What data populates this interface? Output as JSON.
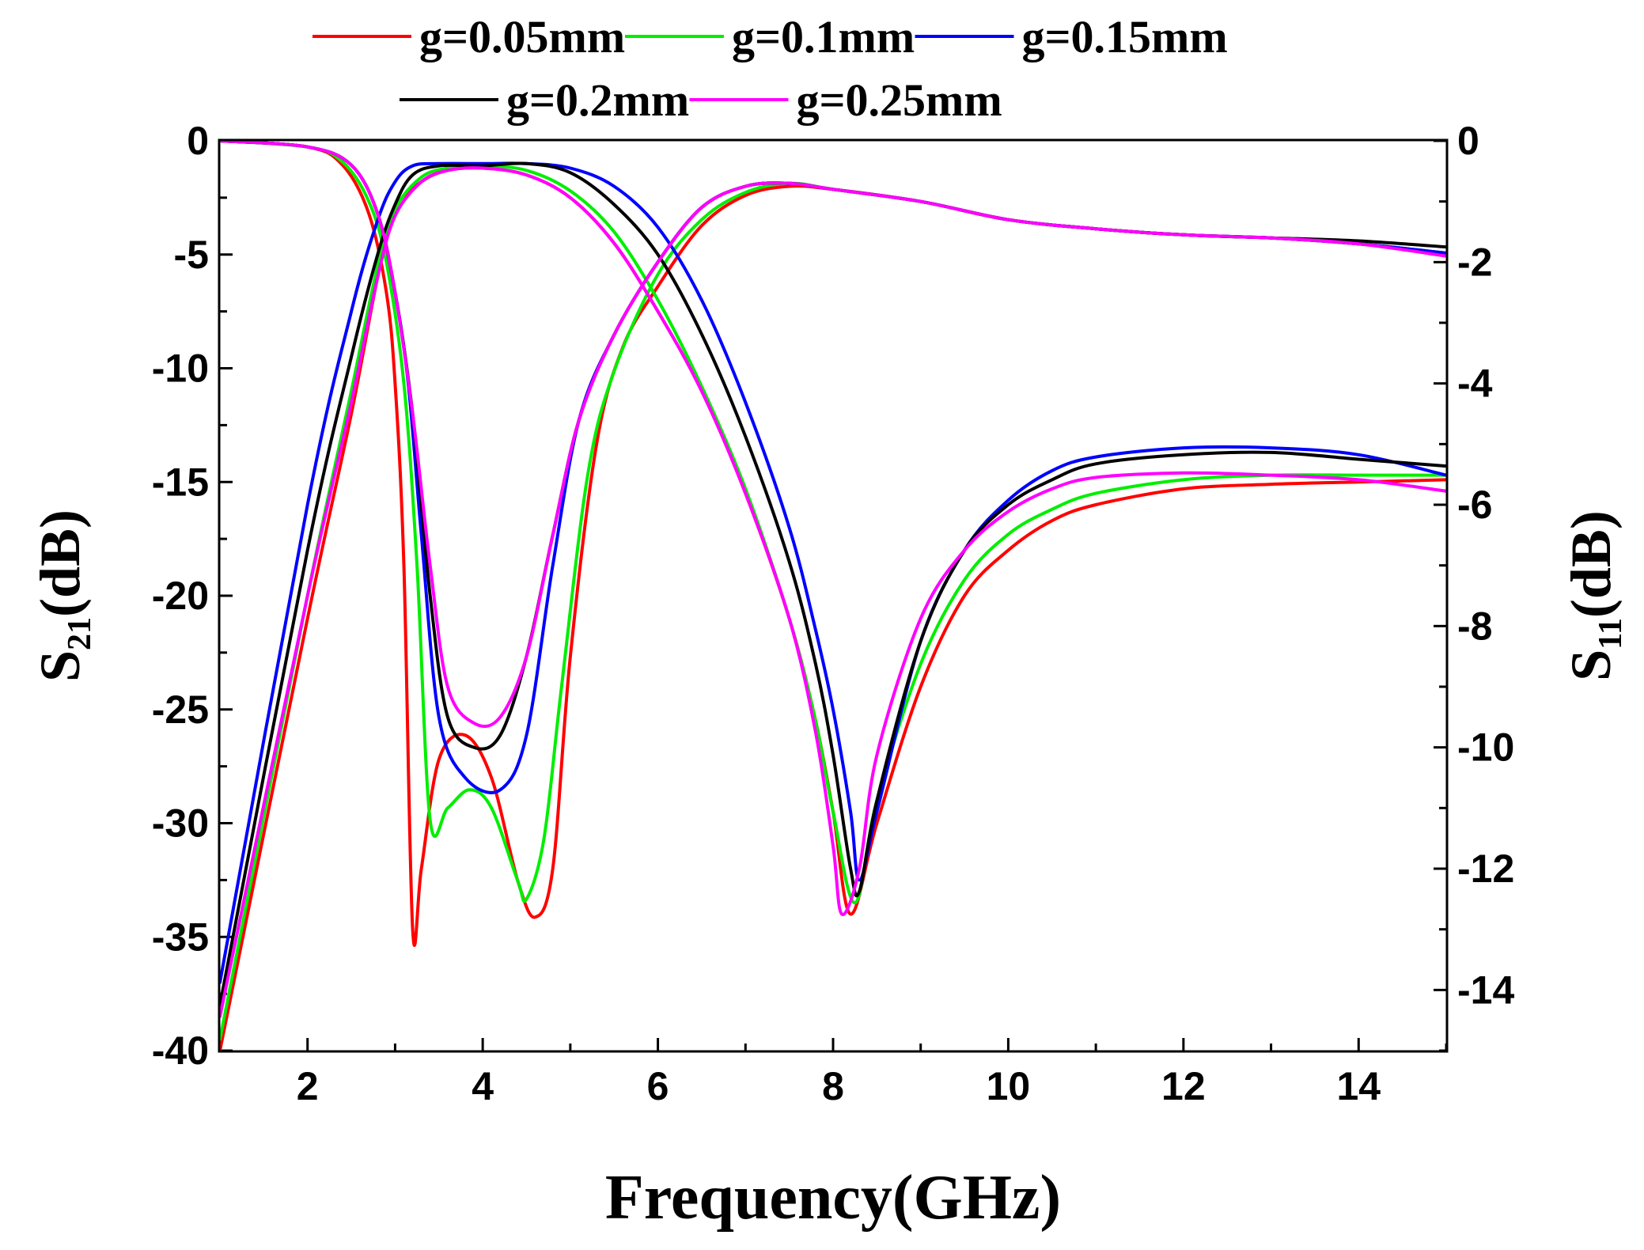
{
  "chart_data": {
    "type": "line",
    "title": "",
    "xlabel": "Frequency(GHz)",
    "ylabel_left": {
      "main": "S",
      "sub": "21",
      "unit": "(dB)"
    },
    "ylabel_right": {
      "main": "S",
      "sub": "11",
      "unit": "(dB)"
    },
    "xlim": [
      1,
      15
    ],
    "ylim_left": [
      -40,
      0
    ],
    "ylim_right": [
      -15,
      0
    ],
    "x_ticks": [
      2,
      4,
      6,
      8,
      10,
      12,
      14
    ],
    "x_tick_labels": [
      "2",
      "4",
      "6",
      "8",
      "10",
      "12",
      "14"
    ],
    "y_left_ticks": [
      0,
      -5,
      -10,
      -15,
      -20,
      -25,
      -30,
      -35,
      -40
    ],
    "y_left_tick_labels": [
      "0",
      "-5",
      "-10",
      "-15",
      "-20",
      "-25",
      "-30",
      "-35",
      "-40"
    ],
    "y_right_ticks": [
      0,
      -2,
      -4,
      -6,
      -8,
      -10,
      -12,
      -14
    ],
    "y_right_tick_labels": [
      "0",
      "-2",
      "-4",
      "-6",
      "-8",
      "-10",
      "-12",
      "-14"
    ],
    "grid": false,
    "legend_position": "top",
    "series": [
      {
        "name": "g=0.05mm",
        "color": "#ff0000",
        "s21": [
          [
            1,
            -40
          ],
          [
            2,
            -21
          ],
          [
            2.5,
            -12
          ],
          [
            2.8,
            -6
          ],
          [
            3,
            -3
          ],
          [
            3.3,
            -1.8
          ],
          [
            3.6,
            -1.3
          ],
          [
            4,
            -1.2
          ],
          [
            4.5,
            -1.5
          ],
          [
            5,
            -2.5
          ],
          [
            5.5,
            -4.5
          ],
          [
            6,
            -7.5
          ],
          [
            6.5,
            -11
          ],
          [
            7,
            -15.5
          ],
          [
            7.5,
            -21
          ],
          [
            7.8,
            -25.5
          ],
          [
            8,
            -29.5
          ],
          [
            8.2,
            -34
          ],
          [
            8.5,
            -30
          ],
          [
            9,
            -24
          ],
          [
            9.5,
            -20
          ],
          [
            10,
            -18
          ],
          [
            10.5,
            -16.7
          ],
          [
            11,
            -16
          ],
          [
            12,
            -15.3
          ],
          [
            13,
            -15.1
          ],
          [
            14,
            -15
          ],
          [
            15,
            -14.9
          ]
        ],
        "s11": [
          [
            1,
            0
          ],
          [
            2,
            -0.1
          ],
          [
            2.4,
            -0.4
          ],
          [
            2.7,
            -1.2
          ],
          [
            2.9,
            -2.5
          ],
          [
            3,
            -4
          ],
          [
            3.1,
            -7
          ],
          [
            3.2,
            -13
          ],
          [
            3.3,
            -12
          ],
          [
            3.5,
            -10.2
          ],
          [
            3.8,
            -9.8
          ],
          [
            4.1,
            -10.5
          ],
          [
            4.4,
            -12.2
          ],
          [
            4.6,
            -12.8
          ],
          [
            4.8,
            -12
          ],
          [
            5,
            -8.5
          ],
          [
            5.3,
            -5
          ],
          [
            5.6,
            -3.4
          ],
          [
            6,
            -2.4
          ],
          [
            6.5,
            -1.4
          ],
          [
            7,
            -0.9
          ],
          [
            7.5,
            -0.75
          ],
          [
            8,
            -0.8
          ],
          [
            9,
            -1.0
          ],
          [
            10,
            -1.3
          ],
          [
            11,
            -1.45
          ],
          [
            12,
            -1.55
          ],
          [
            13,
            -1.6
          ],
          [
            14,
            -1.7
          ],
          [
            15,
            -1.85
          ]
        ]
      },
      {
        "name": "g=0.1mm",
        "color": "#00ee00",
        "s21": [
          [
            1,
            -39.5
          ],
          [
            2,
            -20
          ],
          [
            2.5,
            -11
          ],
          [
            2.8,
            -5.5
          ],
          [
            3,
            -3
          ],
          [
            3.3,
            -1.6
          ],
          [
            3.6,
            -1.2
          ],
          [
            4,
            -1.1
          ],
          [
            4.5,
            -1.3
          ],
          [
            5,
            -2.2
          ],
          [
            5.5,
            -4
          ],
          [
            6,
            -7
          ],
          [
            6.5,
            -10.8
          ],
          [
            7,
            -15.3
          ],
          [
            7.5,
            -21
          ],
          [
            7.8,
            -25.5
          ],
          [
            8,
            -29.5
          ],
          [
            8.25,
            -33.5
          ],
          [
            8.5,
            -29
          ],
          [
            9,
            -23
          ],
          [
            9.5,
            -19.3
          ],
          [
            10,
            -17.3
          ],
          [
            10.5,
            -16.2
          ],
          [
            11,
            -15.5
          ],
          [
            12,
            -14.9
          ],
          [
            13,
            -14.7
          ],
          [
            14,
            -14.7
          ],
          [
            15,
            -14.7
          ]
        ],
        "s11": [
          [
            1,
            0
          ],
          [
            2,
            -0.1
          ],
          [
            2.4,
            -0.35
          ],
          [
            2.7,
            -1
          ],
          [
            2.9,
            -2
          ],
          [
            3.1,
            -4
          ],
          [
            3.25,
            -7
          ],
          [
            3.4,
            -11.2
          ],
          [
            3.6,
            -11
          ],
          [
            3.85,
            -10.7
          ],
          [
            4.1,
            -11
          ],
          [
            4.4,
            -12.2
          ],
          [
            4.5,
            -12.5
          ],
          [
            4.7,
            -11.5
          ],
          [
            4.9,
            -9
          ],
          [
            5.2,
            -5.5
          ],
          [
            5.5,
            -3.8
          ],
          [
            6,
            -2.2
          ],
          [
            6.5,
            -1.3
          ],
          [
            7,
            -0.85
          ],
          [
            7.5,
            -0.7
          ],
          [
            8,
            -0.8
          ],
          [
            9,
            -1.0
          ],
          [
            10,
            -1.3
          ],
          [
            11,
            -1.45
          ],
          [
            12,
            -1.55
          ],
          [
            13,
            -1.6
          ],
          [
            14,
            -1.7
          ],
          [
            15,
            -1.85
          ]
        ]
      },
      {
        "name": "g=0.15mm",
        "color": "#0000ff",
        "s21": [
          [
            1,
            -37
          ],
          [
            2,
            -16
          ],
          [
            2.5,
            -7.5
          ],
          [
            2.8,
            -3.5
          ],
          [
            3,
            -1.8
          ],
          [
            3.2,
            -1.1
          ],
          [
            3.5,
            -1
          ],
          [
            4,
            -1
          ],
          [
            4.5,
            -1
          ],
          [
            5,
            -1.2
          ],
          [
            5.5,
            -2
          ],
          [
            6,
            -3.8
          ],
          [
            6.5,
            -7
          ],
          [
            7,
            -11.5
          ],
          [
            7.5,
            -17
          ],
          [
            7.8,
            -21.5
          ],
          [
            8,
            -25
          ],
          [
            8.2,
            -29.5
          ],
          [
            8.3,
            -32.5
          ],
          [
            8.5,
            -29.5
          ],
          [
            9,
            -22
          ],
          [
            9.5,
            -18
          ],
          [
            10,
            -15.8
          ],
          [
            10.5,
            -14.5
          ],
          [
            11,
            -13.9
          ],
          [
            12,
            -13.5
          ],
          [
            13,
            -13.5
          ],
          [
            14,
            -13.8
          ],
          [
            15,
            -14.7
          ]
        ],
        "s11": [
          [
            1,
            0
          ],
          [
            2,
            -0.1
          ],
          [
            2.5,
            -0.4
          ],
          [
            2.8,
            -1.2
          ],
          [
            3,
            -2.5
          ],
          [
            3.15,
            -4
          ],
          [
            3.3,
            -6.5
          ],
          [
            3.5,
            -9.5
          ],
          [
            3.8,
            -10.5
          ],
          [
            4.2,
            -10.7
          ],
          [
            4.5,
            -9.8
          ],
          [
            4.8,
            -7
          ],
          [
            5.1,
            -4.6
          ],
          [
            5.5,
            -3.2
          ],
          [
            6,
            -2
          ],
          [
            6.5,
            -1.1
          ],
          [
            7,
            -0.75
          ],
          [
            7.5,
            -0.7
          ],
          [
            8,
            -0.8
          ],
          [
            9,
            -1.0
          ],
          [
            10,
            -1.3
          ],
          [
            11,
            -1.45
          ],
          [
            12,
            -1.55
          ],
          [
            13,
            -1.6
          ],
          [
            14,
            -1.7
          ],
          [
            15,
            -1.85
          ]
        ]
      },
      {
        "name": "g=0.2mm",
        "color": "#000000",
        "s21": [
          [
            1,
            -38
          ],
          [
            2,
            -18
          ],
          [
            2.5,
            -9.5
          ],
          [
            2.8,
            -5
          ],
          [
            3,
            -2.8
          ],
          [
            3.2,
            -1.5
          ],
          [
            3.5,
            -1.1
          ],
          [
            4,
            -1.1
          ],
          [
            4.5,
            -1
          ],
          [
            5,
            -1.4
          ],
          [
            5.5,
            -2.8
          ],
          [
            6,
            -5
          ],
          [
            6.5,
            -8.5
          ],
          [
            7,
            -13
          ],
          [
            7.5,
            -18.5
          ],
          [
            7.8,
            -23
          ],
          [
            8,
            -27
          ],
          [
            8.2,
            -32
          ],
          [
            8.3,
            -33
          ],
          [
            8.5,
            -29
          ],
          [
            9,
            -22
          ],
          [
            9.5,
            -18
          ],
          [
            10,
            -16
          ],
          [
            10.5,
            -14.9
          ],
          [
            11,
            -14.2
          ],
          [
            12,
            -13.8
          ],
          [
            13,
            -13.7
          ],
          [
            14,
            -14
          ],
          [
            15,
            -14.3
          ]
        ],
        "s11": [
          [
            1,
            0
          ],
          [
            2,
            -0.1
          ],
          [
            2.5,
            -0.4
          ],
          [
            2.8,
            -1.2
          ],
          [
            3,
            -2.5
          ],
          [
            3.2,
            -4.5
          ],
          [
            3.4,
            -7.5
          ],
          [
            3.6,
            -9.5
          ],
          [
            3.9,
            -10
          ],
          [
            4.2,
            -9.8
          ],
          [
            4.5,
            -8.5
          ],
          [
            4.8,
            -6.5
          ],
          [
            5.1,
            -4.6
          ],
          [
            5.5,
            -3.2
          ],
          [
            6,
            -2
          ],
          [
            6.5,
            -1.1
          ],
          [
            7,
            -0.75
          ],
          [
            7.5,
            -0.7
          ],
          [
            8,
            -0.8
          ],
          [
            9,
            -1.0
          ],
          [
            10,
            -1.3
          ],
          [
            11,
            -1.45
          ],
          [
            12,
            -1.55
          ],
          [
            13,
            -1.6
          ],
          [
            14,
            -1.65
          ],
          [
            15,
            -1.75
          ]
        ]
      },
      {
        "name": "g=0.25mm",
        "color": "#ff00ff",
        "s21": [
          [
            1,
            -38.5
          ],
          [
            2,
            -20
          ],
          [
            2.5,
            -11.5
          ],
          [
            2.8,
            -6
          ],
          [
            3,
            -3.3
          ],
          [
            3.3,
            -1.8
          ],
          [
            3.6,
            -1.3
          ],
          [
            4,
            -1.2
          ],
          [
            4.5,
            -1.5
          ],
          [
            5,
            -2.5
          ],
          [
            5.5,
            -4.5
          ],
          [
            6,
            -7.5
          ],
          [
            6.5,
            -11
          ],
          [
            7,
            -15.5
          ],
          [
            7.5,
            -21
          ],
          [
            7.8,
            -26
          ],
          [
            8,
            -31
          ],
          [
            8.1,
            -34
          ],
          [
            8.3,
            -32
          ],
          [
            8.5,
            -27
          ],
          [
            9,
            -21
          ],
          [
            9.5,
            -18
          ],
          [
            10,
            -16.3
          ],
          [
            10.5,
            -15.3
          ],
          [
            11,
            -14.8
          ],
          [
            12,
            -14.6
          ],
          [
            13,
            -14.7
          ],
          [
            14,
            -14.9
          ],
          [
            15,
            -15.4
          ]
        ],
        "s11": [
          [
            1,
            0
          ],
          [
            2,
            -0.1
          ],
          [
            2.5,
            -0.4
          ],
          [
            2.8,
            -1.2
          ],
          [
            3,
            -2.5
          ],
          [
            3.2,
            -4.5
          ],
          [
            3.4,
            -7
          ],
          [
            3.6,
            -9
          ],
          [
            3.9,
            -9.6
          ],
          [
            4.2,
            -9.5
          ],
          [
            4.5,
            -8.5
          ],
          [
            4.8,
            -6.5
          ],
          [
            5.1,
            -4.6
          ],
          [
            5.5,
            -3.2
          ],
          [
            6,
            -2
          ],
          [
            6.5,
            -1.1
          ],
          [
            7,
            -0.75
          ],
          [
            7.5,
            -0.7
          ],
          [
            8,
            -0.8
          ],
          [
            9,
            -1.0
          ],
          [
            10,
            -1.3
          ],
          [
            11,
            -1.45
          ],
          [
            12,
            -1.55
          ],
          [
            13,
            -1.6
          ],
          [
            14,
            -1.7
          ],
          [
            15,
            -1.9
          ]
        ]
      }
    ]
  }
}
